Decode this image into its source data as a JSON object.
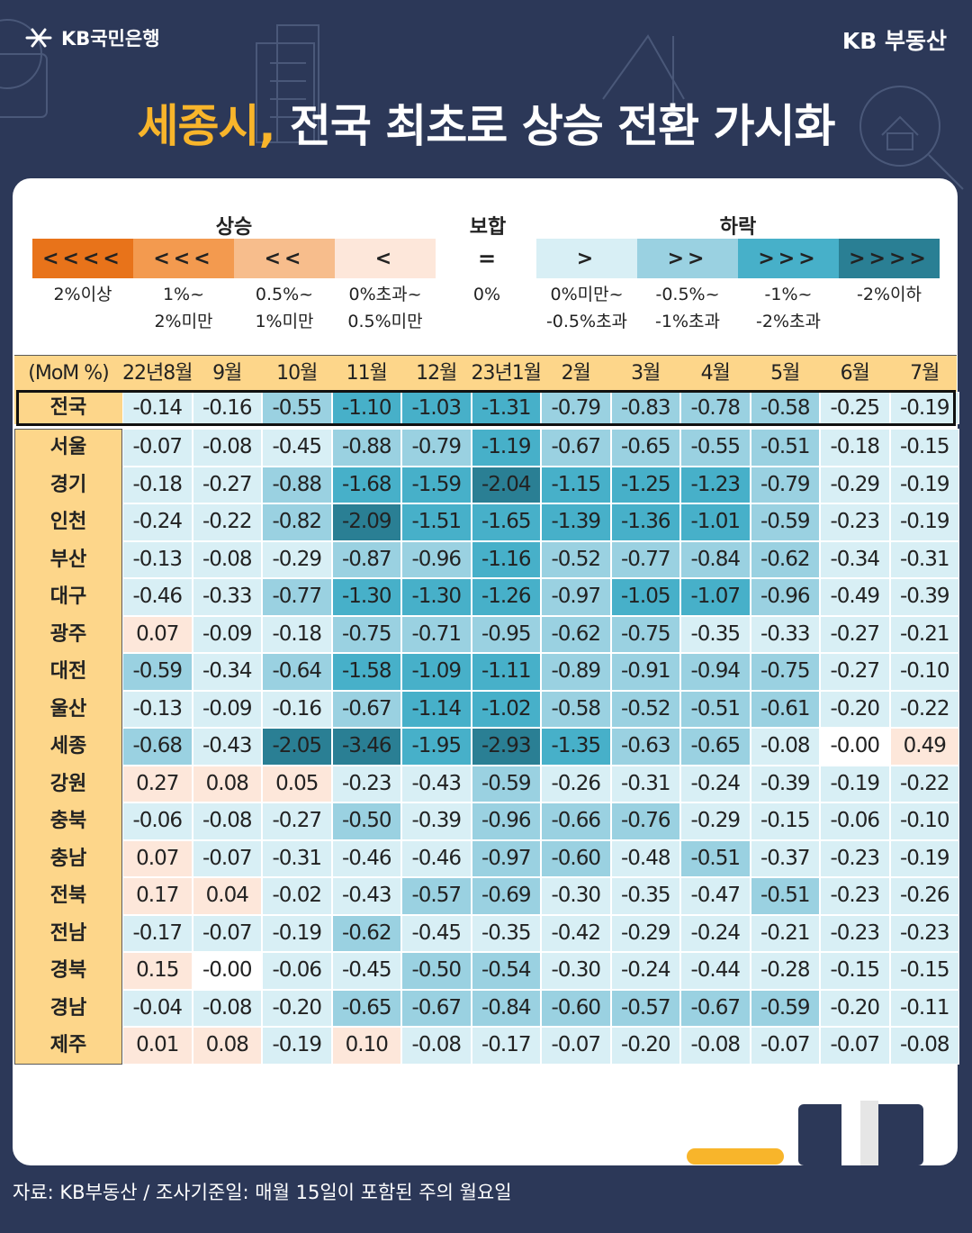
{
  "brand": {
    "bank": "KB국민은행",
    "service": "KB 부동산"
  },
  "headline": {
    "highlight": "세종시,",
    "rest": "전국 최초로 상승 전환 가시화"
  },
  "legend": {
    "groups": {
      "rise": "상승",
      "flat": "보합",
      "fall": "하락"
    },
    "flat_symbol": "=",
    "items": [
      {
        "symbol": "<<<<",
        "label": "2%이상",
        "color": "#e8731a"
      },
      {
        "symbol": "<<<",
        "label": "1%~\n2%미만",
        "color": "#f39a4f"
      },
      {
        "symbol": "<<",
        "label": "0.5%~\n1%미만",
        "color": "#f7bd8c"
      },
      {
        "symbol": "<",
        "label": "0%초과~\n0.5%미만",
        "color": "#fde7da"
      },
      {
        "symbol": "",
        "label": "0%",
        "color": "#ffffff"
      },
      {
        "symbol": ">",
        "label": "0%미만~\n-0.5%초과",
        "color": "#d8eff5"
      },
      {
        "symbol": ">>",
        "label": "-0.5%~\n-1%초과",
        "color": "#9ad1e1"
      },
      {
        "symbol": ">>>",
        "label": "-1%~\n-2%초과",
        "color": "#47b0c9"
      },
      {
        "symbol": ">>>>",
        "label": "-2%이하",
        "color": "#2a7f94"
      }
    ]
  },
  "footer": {
    "source": "자료: KB부동산 / 조사기준일: 매월 15일이 포함된 주의 월요일"
  },
  "chart_data": {
    "type": "table",
    "row_header": "(MoM %)",
    "columns": [
      "22년8월",
      "9월",
      "10월",
      "11월",
      "12월",
      "23년1월",
      "2월",
      "3월",
      "4월",
      "5월",
      "6월",
      "7월"
    ],
    "rows": [
      {
        "region": "전국",
        "values": [
          "-0.14",
          "-0.16",
          "-0.55",
          "-1.10",
          "-1.03",
          "-1.31",
          "-0.79",
          "-0.83",
          "-0.78",
          "-0.58",
          "-0.25",
          "-0.19"
        ]
      },
      {
        "region": "서울",
        "values": [
          "-0.07",
          "-0.08",
          "-0.45",
          "-0.88",
          "-0.79",
          "-1.19",
          "-0.67",
          "-0.65",
          "-0.55",
          "-0.51",
          "-0.18",
          "-0.15"
        ]
      },
      {
        "region": "경기",
        "values": [
          "-0.18",
          "-0.27",
          "-0.88",
          "-1.68",
          "-1.59",
          "-2.04",
          "-1.15",
          "-1.25",
          "-1.23",
          "-0.79",
          "-0.29",
          "-0.19"
        ]
      },
      {
        "region": "인천",
        "values": [
          "-0.24",
          "-0.22",
          "-0.82",
          "-2.09",
          "-1.51",
          "-1.65",
          "-1.39",
          "-1.36",
          "-1.01",
          "-0.59",
          "-0.23",
          "-0.19"
        ]
      },
      {
        "region": "부산",
        "values": [
          "-0.13",
          "-0.08",
          "-0.29",
          "-0.87",
          "-0.96",
          "-1.16",
          "-0.52",
          "-0.77",
          "-0.84",
          "-0.62",
          "-0.34",
          "-0.31"
        ]
      },
      {
        "region": "대구",
        "values": [
          "-0.46",
          "-0.33",
          "-0.77",
          "-1.30",
          "-1.30",
          "-1.26",
          "-0.97",
          "-1.05",
          "-1.07",
          "-0.96",
          "-0.49",
          "-0.39"
        ]
      },
      {
        "region": "광주",
        "values": [
          "0.07",
          "-0.09",
          "-0.18",
          "-0.75",
          "-0.71",
          "-0.95",
          "-0.62",
          "-0.75",
          "-0.35",
          "-0.33",
          "-0.27",
          "-0.21"
        ]
      },
      {
        "region": "대전",
        "values": [
          "-0.59",
          "-0.34",
          "-0.64",
          "-1.58",
          "-1.09",
          "-1.11",
          "-0.89",
          "-0.91",
          "-0.94",
          "-0.75",
          "-0.27",
          "-0.10"
        ]
      },
      {
        "region": "울산",
        "values": [
          "-0.13",
          "-0.09",
          "-0.16",
          "-0.67",
          "-1.14",
          "-1.02",
          "-0.58",
          "-0.52",
          "-0.51",
          "-0.61",
          "-0.20",
          "-0.22"
        ]
      },
      {
        "region": "세종",
        "values": [
          "-0.68",
          "-0.43",
          "-2.05",
          "-3.46",
          "-1.95",
          "-2.93",
          "-1.35",
          "-0.63",
          "-0.65",
          "-0.08",
          "-0.00",
          "0.49"
        ]
      },
      {
        "region": "강원",
        "values": [
          "0.27",
          "0.08",
          "0.05",
          "-0.23",
          "-0.43",
          "-0.59",
          "-0.26",
          "-0.31",
          "-0.24",
          "-0.39",
          "-0.19",
          "-0.22"
        ]
      },
      {
        "region": "충북",
        "values": [
          "-0.06",
          "-0.08",
          "-0.27",
          "-0.50",
          "-0.39",
          "-0.96",
          "-0.66",
          "-0.76",
          "-0.29",
          "-0.15",
          "-0.06",
          "-0.10"
        ]
      },
      {
        "region": "충남",
        "values": [
          "0.07",
          "-0.07",
          "-0.31",
          "-0.46",
          "-0.46",
          "-0.97",
          "-0.60",
          "-0.48",
          "-0.51",
          "-0.37",
          "-0.23",
          "-0.19"
        ]
      },
      {
        "region": "전북",
        "values": [
          "0.17",
          "0.04",
          "-0.02",
          "-0.43",
          "-0.57",
          "-0.69",
          "-0.30",
          "-0.35",
          "-0.47",
          "-0.51",
          "-0.23",
          "-0.26"
        ]
      },
      {
        "region": "전남",
        "values": [
          "-0.17",
          "-0.07",
          "-0.19",
          "-0.62",
          "-0.45",
          "-0.35",
          "-0.42",
          "-0.29",
          "-0.24",
          "-0.21",
          "-0.23",
          "-0.23"
        ]
      },
      {
        "region": "경북",
        "values": [
          "0.15",
          "-0.00",
          "-0.06",
          "-0.45",
          "-0.50",
          "-0.54",
          "-0.30",
          "-0.24",
          "-0.44",
          "-0.28",
          "-0.15",
          "-0.15"
        ]
      },
      {
        "region": "경남",
        "values": [
          "-0.04",
          "-0.08",
          "-0.20",
          "-0.65",
          "-0.67",
          "-0.84",
          "-0.60",
          "-0.57",
          "-0.67",
          "-0.59",
          "-0.20",
          "-0.11"
        ]
      },
      {
        "region": "제주",
        "values": [
          "0.01",
          "0.08",
          "-0.19",
          "0.10",
          "-0.08",
          "-0.17",
          "-0.07",
          "-0.20",
          "-0.08",
          "-0.07",
          "-0.07",
          "-0.08"
        ]
      }
    ]
  }
}
